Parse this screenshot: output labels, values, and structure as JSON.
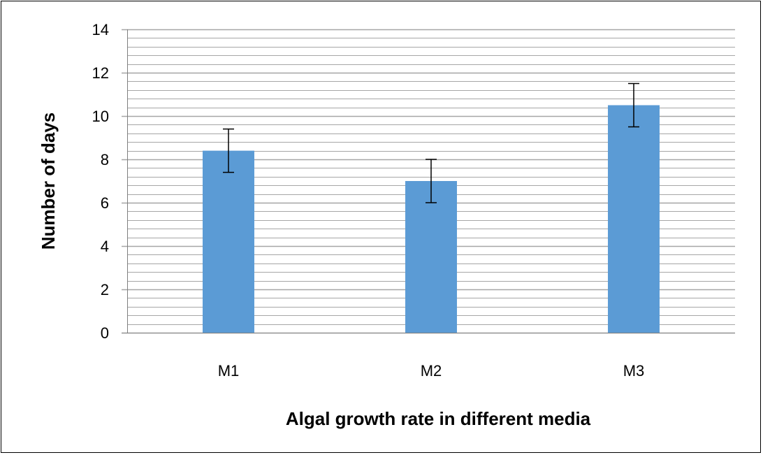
{
  "chart_data": {
    "type": "bar",
    "categories": [
      "M1",
      "M2",
      "M3"
    ],
    "values": [
      8.4,
      7.0,
      10.5
    ],
    "error": [
      1.0,
      1.0,
      1.0
    ],
    "xlabel": "Algal growth rate in different media",
    "ylabel": "Number of days",
    "ylim": [
      0,
      14
    ],
    "yticks": [
      0,
      2,
      4,
      6,
      8,
      10,
      12,
      14
    ],
    "ytick_labels": [
      "0",
      "2",
      "4",
      "6",
      "8",
      "10",
      "12",
      "14"
    ],
    "minor_gridlines_per_major": 5,
    "grid": true,
    "legend": "none",
    "bar_color": "#5b9bd5",
    "gridline_color": "#a6a6a6"
  }
}
